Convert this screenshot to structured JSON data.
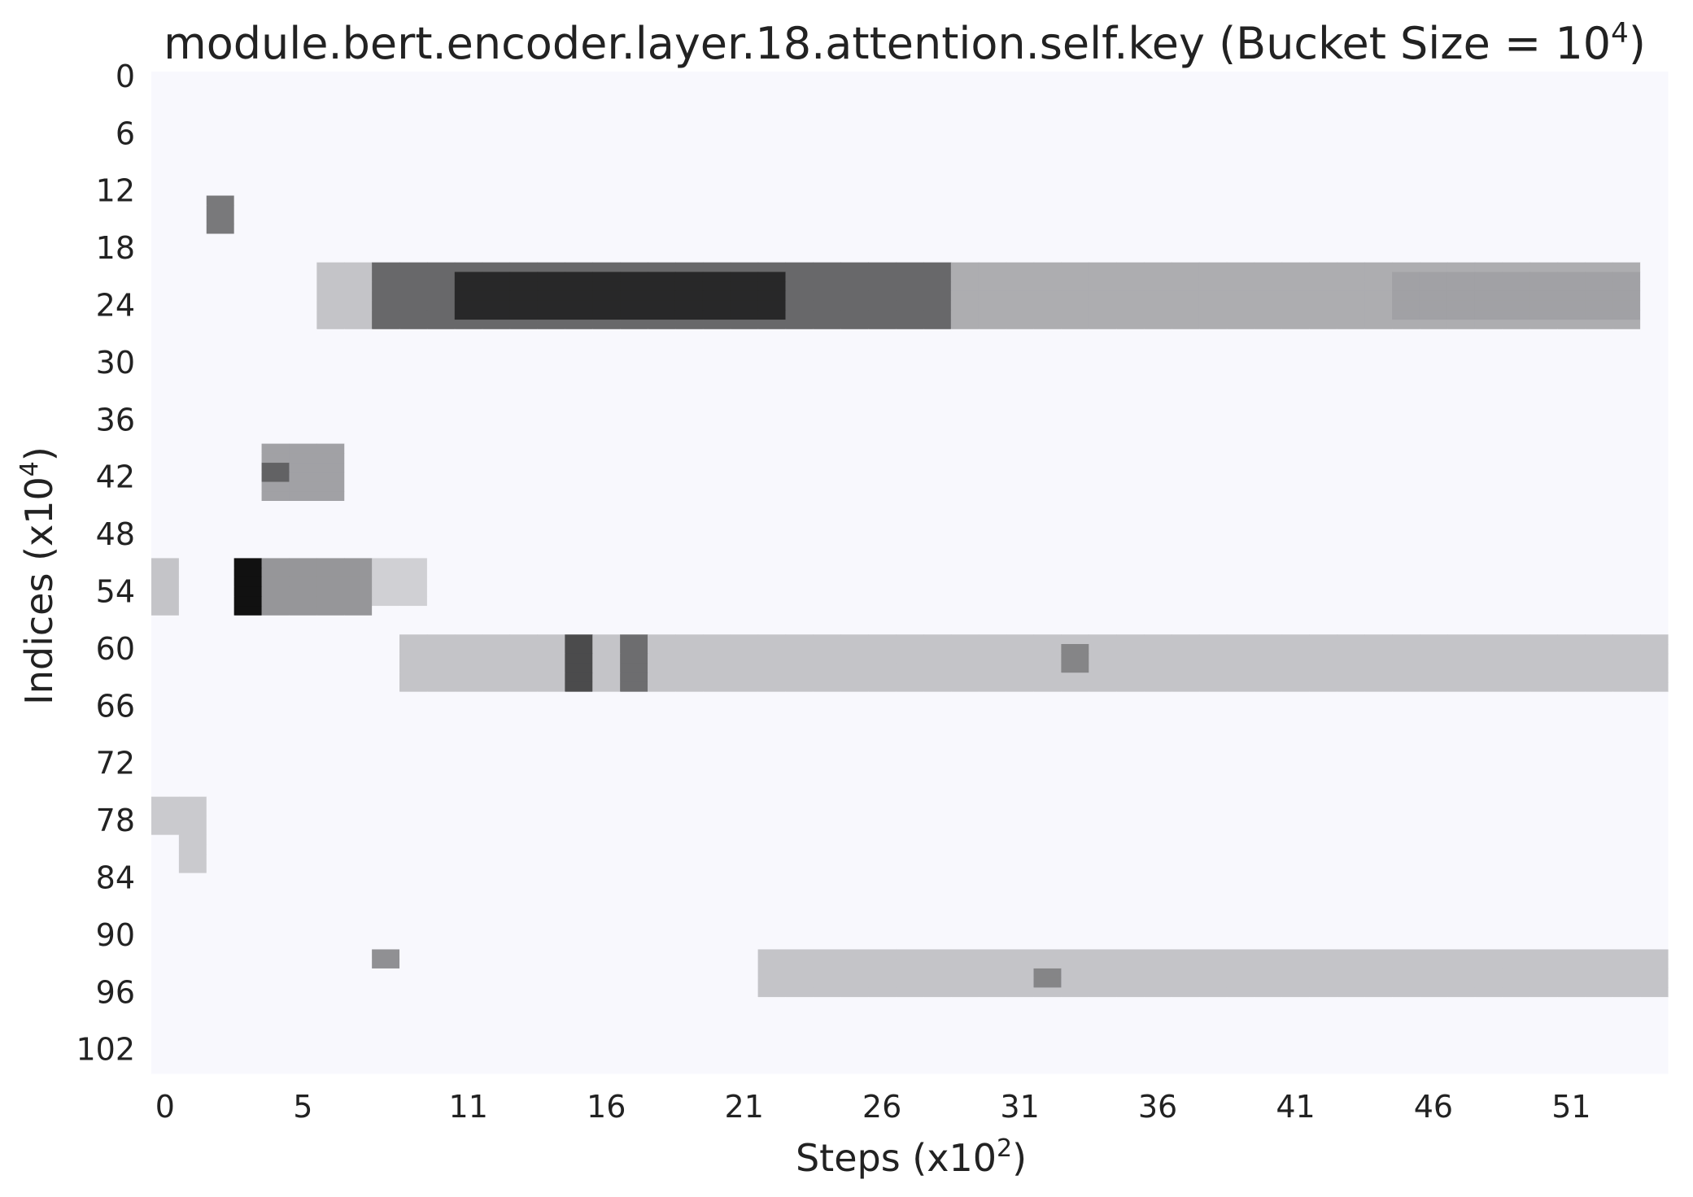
{
  "chart_data": {
    "type": "heatmap",
    "title": "module.bert.encoder.layer.18.attention.self.key (Bucket Size = 10",
    "title_sup": "4",
    "title_end": ")",
    "xlabel": "Steps (x10",
    "xlabel_sup": "2",
    "xlabel_end": ")",
    "ylabel": "Indices (x10",
    "ylabel_sup": "4",
    "ylabel_end": ")",
    "x_ticks": [
      "0",
      "5",
      "11",
      "16",
      "21",
      "26",
      "31",
      "36",
      "41",
      "46",
      "51"
    ],
    "y_ticks": [
      "0",
      "6",
      "12",
      "18",
      "24",
      "30",
      "36",
      "42",
      "48",
      "54",
      "60",
      "66",
      "72",
      "78",
      "84",
      "90",
      "96",
      "102"
    ],
    "n_cols": 55,
    "n_rows": 105,
    "grid": false,
    "colorscale": [
      "#f8f8fd",
      "#111111"
    ],
    "legend": "none",
    "value_range": [
      0,
      4
    ],
    "base_value": 0,
    "blocks": [
      {
        "c0": 8,
        "c1": 28,
        "r0": 20,
        "r1": 26,
        "v": 2.5
      },
      {
        "c0": 11,
        "c1": 22,
        "r0": 21,
        "r1": 25,
        "v": 3.6
      },
      {
        "c0": 29,
        "c1": 53,
        "r0": 20,
        "r1": 26,
        "v": 1.3
      },
      {
        "c0": 45,
        "c1": 53,
        "r0": 21,
        "r1": 25,
        "v": 1.5
      },
      {
        "c0": 6,
        "c1": 7,
        "r0": 20,
        "r1": 26,
        "v": 0.9
      },
      {
        "c0": 2,
        "c1": 2,
        "r0": 13,
        "r1": 16,
        "v": 2.2
      },
      {
        "c0": 4,
        "c1": 6,
        "r0": 39,
        "r1": 44,
        "v": 1.5
      },
      {
        "c0": 4,
        "c1": 4,
        "r0": 41,
        "r1": 42,
        "v": 2.6
      },
      {
        "c0": 3,
        "c1": 3,
        "r0": 51,
        "r1": 56,
        "v": 4.0
      },
      {
        "c0": 4,
        "c1": 7,
        "r0": 51,
        "r1": 56,
        "v": 1.7
      },
      {
        "c0": 0,
        "c1": 0,
        "r0": 51,
        "r1": 56,
        "v": 0.9
      },
      {
        "c0": 8,
        "c1": 9,
        "r0": 51,
        "r1": 55,
        "v": 0.7
      },
      {
        "c0": 9,
        "c1": 54,
        "r0": 59,
        "r1": 64,
        "v": 0.9
      },
      {
        "c0": 15,
        "c1": 15,
        "r0": 59,
        "r1": 64,
        "v": 3.0
      },
      {
        "c0": 17,
        "c1": 17,
        "r0": 59,
        "r1": 64,
        "v": 2.4
      },
      {
        "c0": 33,
        "c1": 33,
        "r0": 60,
        "r1": 62,
        "v": 2.0
      },
      {
        "c0": 0,
        "c1": 1,
        "r0": 76,
        "r1": 79,
        "v": 0.8
      },
      {
        "c0": 1,
        "c1": 1,
        "r0": 80,
        "r1": 83,
        "v": 0.8
      },
      {
        "c0": 22,
        "c1": 54,
        "r0": 92,
        "r1": 96,
        "v": 0.9
      },
      {
        "c0": 8,
        "c1": 8,
        "r0": 92,
        "r1": 93,
        "v": 1.8
      },
      {
        "c0": 32,
        "c1": 32,
        "r0": 94,
        "r1": 95,
        "v": 2.0
      }
    ]
  }
}
